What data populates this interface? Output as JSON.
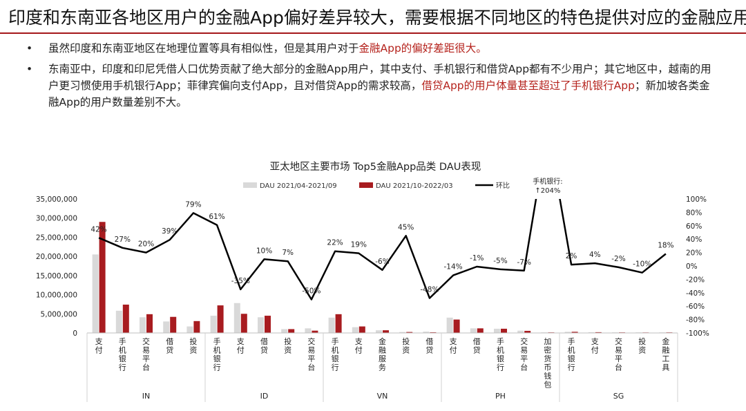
{
  "header": {
    "title": "印度和东南亚各地区用户的金融App偏好差异较大，需要根据不同地区的特色提供对应的金融应用",
    "accent_color": "#a4161a"
  },
  "bullets": [
    {
      "parts": [
        {
          "text": "虽然印度和东南亚地区在地理位置等具有相似性，但是其用户对于"
        },
        {
          "text": "金融App的偏好差距很大。",
          "highlight": true
        }
      ]
    },
    {
      "parts": [
        {
          "text": "东南亚中，印度和印尼凭借人口优势贡献了绝大部分的金融App用户，其中支付、手机银行和借贷App都有不少用户；其它地区中，越南的用户更习惯使用手机银行App；菲律宾偏向支付App，且对借贷App的需求较高，"
        },
        {
          "text": "借贷App的用户体量甚至超过了手机银行App",
          "highlight": true
        },
        {
          "text": "；新加坡各类金融App的用户数量差别不大。"
        }
      ]
    }
  ],
  "highlight_color": "#b5231d",
  "chart_data": {
    "type": "bar",
    "title": "亚太地区主要市场 Top5金融App品类 DAU表现",
    "legend": [
      "DAU 2021/04-2021/09",
      "DAU 2021/10-2022/03",
      "环比"
    ],
    "legend_placement": "top",
    "colors": {
      "prev": "#d9d9d9",
      "curr": "#a81c20",
      "line": "#000000"
    },
    "groups": [
      {
        "name": "IN",
        "categories": [
          "支付",
          "手机银行",
          "交易平台",
          "借贷",
          "投资"
        ]
      },
      {
        "name": "ID",
        "categories": [
          "手机银行",
          "支付",
          "借贷",
          "投资",
          "交易平台"
        ]
      },
      {
        "name": "VN",
        "categories": [
          "手机银行",
          "支付",
          "金融服务",
          "投资",
          "借贷"
        ]
      },
      {
        "name": "PH",
        "categories": [
          "支付",
          "借贷",
          "手机银行",
          "交易平台",
          "加密货币钱包"
        ]
      },
      {
        "name": "SG",
        "categories": [
          "手机银行",
          "支付",
          "交易平台",
          "投资",
          "金融工具"
        ]
      }
    ],
    "series": [
      {
        "name": "DAU 2021/04-2021/09",
        "axis": "left",
        "values": [
          20500000,
          5800000,
          4100000,
          3000000,
          1700000,
          4500000,
          7800000,
          4100000,
          1000000,
          1200000,
          4000000,
          1500000,
          700000,
          250000,
          350000,
          4000000,
          1200000,
          1100000,
          600000,
          150000,
          300000,
          200000,
          150000,
          150000,
          150000
        ]
      },
      {
        "name": "DAU 2021/10-2022/03",
        "axis": "left",
        "values": [
          29000000,
          7400000,
          4900000,
          4200000,
          3100000,
          7200000,
          5000000,
          4500000,
          1000000,
          600000,
          4900000,
          1700000,
          700000,
          250000,
          180000,
          3500000,
          1200000,
          1100000,
          550000,
          150000,
          300000,
          200000,
          150000,
          130000,
          150000
        ]
      },
      {
        "name": "环比",
        "axis": "right",
        "type": "line",
        "values": [
          42,
          27,
          20,
          39,
          79,
          61,
          -35,
          10,
          7,
          -50,
          22,
          19,
          -6,
          45,
          -48,
          -14,
          -1,
          -5,
          -7,
          204,
          2,
          4,
          -2,
          -10,
          18
        ],
        "labels": [
          "42%",
          "27%",
          "20%",
          "39%",
          "79%",
          "61%",
          "-35%",
          "10%",
          "7%",
          "-50%",
          "22%",
          "19%",
          "-6%",
          "45%",
          "-48%",
          "-14%",
          "-1%",
          "-5%",
          "-7%",
          "",
          "2%",
          "4%",
          "-2%",
          "-10%",
          "18%"
        ]
      }
    ],
    "callout": "手机银行:\n↑204%",
    "y_left": {
      "min": 0,
      "max": 35000000,
      "ticks": [
        "0",
        "5,000,000",
        "10,000,000",
        "15,000,000",
        "20,000,000",
        "25,000,000",
        "30,000,000",
        "35,000,000"
      ]
    },
    "y_right": {
      "min": -100,
      "max": 100,
      "ticks": [
        "-100%",
        "-80%",
        "-60%",
        "-40%",
        "-20%",
        "0%",
        "20%",
        "40%",
        "60%",
        "80%",
        "100%"
      ]
    },
    "grid": false
  }
}
